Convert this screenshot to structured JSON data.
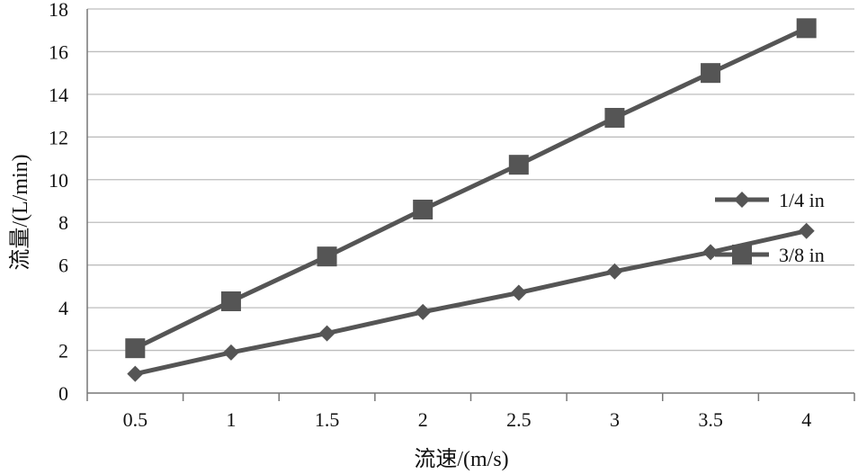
{
  "chart_data": {
    "type": "line",
    "xlabel": "流速/(m/s)",
    "ylabel": "流量/(L/min)",
    "ylim": [
      0,
      18
    ],
    "yticks": [
      "0",
      "2",
      "4",
      "6",
      "8",
      "10",
      "12",
      "14",
      "16",
      "18"
    ],
    "categories": [
      "0.5",
      "1",
      "1.5",
      "2",
      "2.5",
      "3",
      "3.5",
      "4"
    ],
    "grid": true,
    "legend_position": "right",
    "series": [
      {
        "name": "1/4 in",
        "marker": "diamond",
        "color": "#555555",
        "values": [
          0.9,
          1.9,
          2.8,
          3.8,
          4.7,
          5.7,
          6.6,
          7.6
        ]
      },
      {
        "name": "3/8 in",
        "marker": "square",
        "color": "#555555",
        "values": [
          2.1,
          4.3,
          6.4,
          8.6,
          10.7,
          12.9,
          15.0,
          17.1
        ]
      }
    ]
  }
}
